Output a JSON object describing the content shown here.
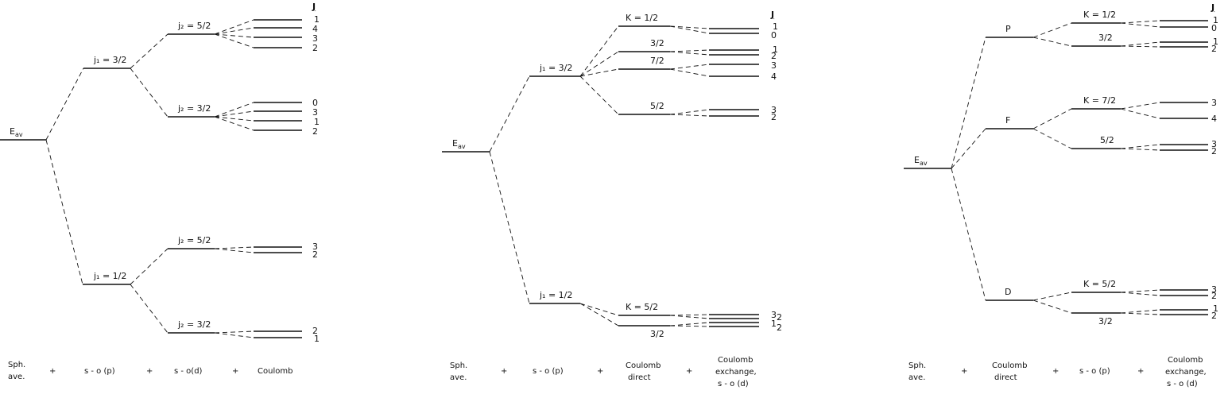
{
  "panel1": {
    "eav": "E",
    "eav_sub": "av",
    "j1a": "j₁ = 3/2",
    "j1b": "j₁ = 1/2",
    "j2a": "j₂ = 5/2",
    "j2b": "j₂ = 3/2",
    "j2c": "j₂ = 5/2",
    "j2d": "j₂ = 3/2",
    "J_header": "J",
    "J_a": [
      "1",
      "4",
      "3",
      "2"
    ],
    "J_b": [
      "0",
      "3",
      "1",
      "2"
    ],
    "J_c": [
      "3",
      "2"
    ],
    "J_d": [
      "2",
      "1"
    ],
    "axis": [
      "Sph.",
      "ave.",
      "+",
      "s - o (p)",
      "+",
      "s - o(d)",
      "+",
      "Coulomb"
    ]
  },
  "panel2": {
    "eav": "E",
    "eav_sub": "av",
    "j1a": "j₁ = 3/2",
    "j1b": "j₁ = 1/2",
    "k_a": "K = 1/2",
    "k_b": "3/2",
    "k_c": "7/2",
    "k_d": "5/2",
    "k_e": "K = 5/2",
    "k_f": "3/2",
    "J_header": "J",
    "J_a": [
      "1",
      "0"
    ],
    "J_b": [
      "1",
      "2"
    ],
    "J_c": [
      "3",
      "4"
    ],
    "J_d": [
      "3",
      "2"
    ],
    "J_e": [
      "3",
      "2",
      "1",
      "2"
    ],
    "axis": [
      "Sph.",
      "ave.",
      "+",
      "s - o (p)",
      "+",
      "Coulomb",
      "direct",
      "+",
      "Coulomb",
      "exchange,",
      "s - o (d)"
    ]
  },
  "panel3": {
    "eav": "E",
    "eav_sub": "av",
    "P": "P",
    "F": "F",
    "D": "D",
    "k_a": "K = 1/2",
    "k_b": "3/2",
    "k_c": "K = 7/2",
    "k_d": "5/2",
    "k_e": "K = 5/2",
    "k_f": "3/2",
    "J_header": "J",
    "J_a": [
      "1",
      "0"
    ],
    "J_b": [
      "1",
      "2"
    ],
    "J_c": [
      "3"
    ],
    "J_d": [
      "4"
    ],
    "J_e": [
      "3",
      "2"
    ],
    "J_f": [
      "3",
      "2"
    ],
    "J_g": [
      "1",
      "2"
    ],
    "axis": [
      "Sph.",
      "ave.",
      "+",
      "Coulomb",
      "direct",
      "+",
      "s - o (p)",
      "+",
      "Coulomb",
      "exchange,",
      "s - o (d)"
    ]
  }
}
